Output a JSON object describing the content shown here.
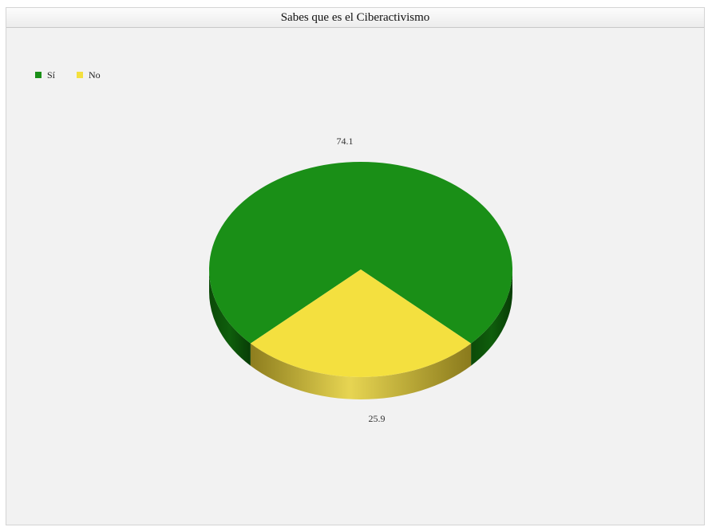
{
  "chart_data": {
    "type": "pie",
    "title": "Sabes que es el Ciberactivismo",
    "categories": [
      "Sí",
      "No"
    ],
    "values": [
      74.1,
      25.9
    ],
    "value_labels": [
      "74.1",
      "25.9"
    ],
    "colors": [
      "#1a8f17",
      "#f4e03f"
    ],
    "legend_position": "top-left"
  }
}
